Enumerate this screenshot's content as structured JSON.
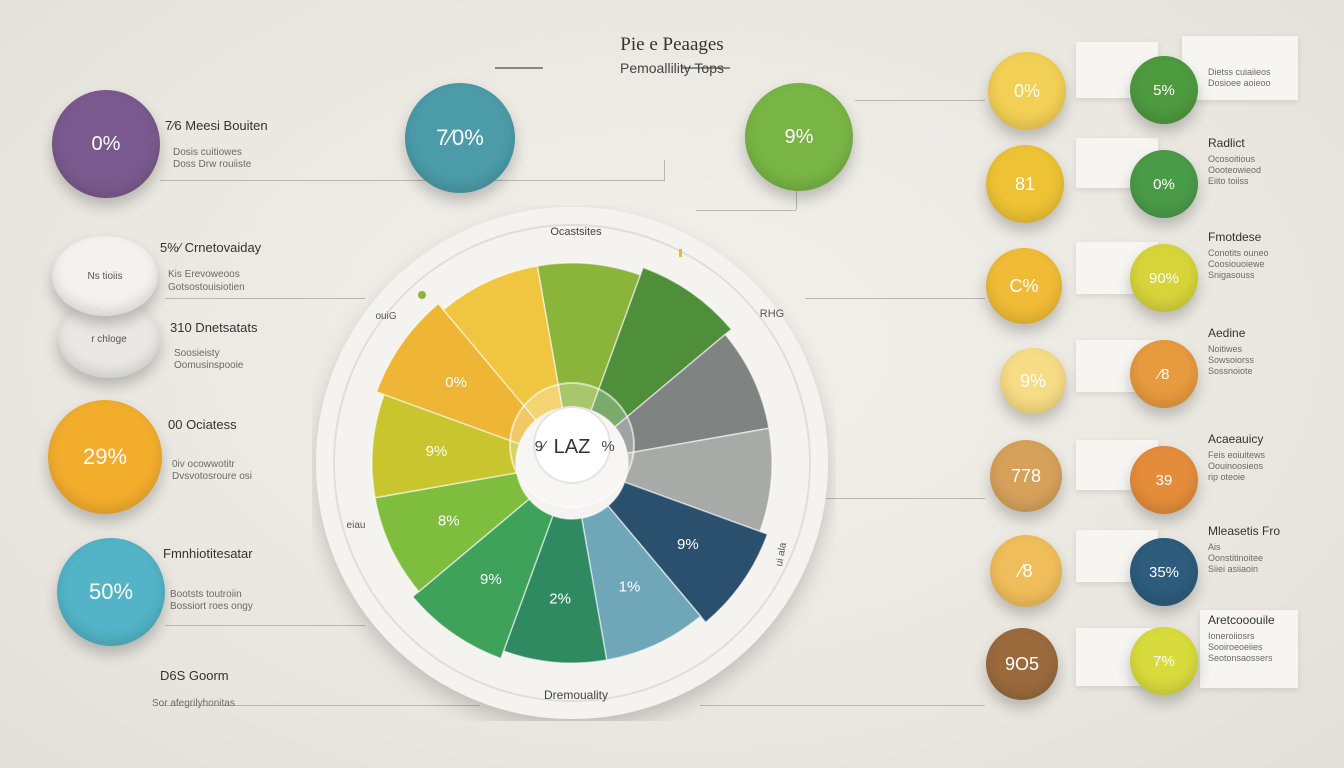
{
  "header": {
    "title": "Pie e Peaages",
    "subtitle": "Pemoallility Tops"
  },
  "chart_data": {
    "type": "pie",
    "center_label": "LAZ",
    "center_left_label": "9⁄",
    "center_right_label": "%",
    "ring_labels": {
      "top": "Ocastsites",
      "bottom": "Dremouality",
      "left_top": "ouiG",
      "left_bottom": "eiau",
      "right_top": "RHG",
      "right_bottom": "ui ala"
    },
    "slices": [
      {
        "label": "",
        "color": "#8bb43a"
      },
      {
        "label": "",
        "color": "#4f8f3a"
      },
      {
        "label": "",
        "color": "#7f8483"
      },
      {
        "label": "",
        "color": "#a8aaa8"
      },
      {
        "label": "9%",
        "color": "#2b506e"
      },
      {
        "label": "1%",
        "color": "#6fa7b9"
      },
      {
        "label": "2%",
        "color": "#2f8a62"
      },
      {
        "label": "9%",
        "color": "#3fa25a"
      },
      {
        "label": "8%",
        "color": "#7fbd3e"
      },
      {
        "label": "9%",
        "color": "#c8c52f"
      },
      {
        "label": "0%",
        "color": "#eeb634"
      },
      {
        "label": "",
        "color": "#f0c640"
      }
    ]
  },
  "top_bubbles": [
    {
      "label": "7⁄0%",
      "color": "#4b9ba9"
    },
    {
      "label": "9%",
      "color": "#78b545"
    }
  ],
  "left_items": [
    {
      "value": "0%",
      "title": "7⁄6 Meesi Bouiten",
      "sub1": "Dosis cuitiowes",
      "sub2": "Doss Drw rouiiste",
      "color": "#7a5a8e"
    },
    {
      "value": "",
      "title": "5%⁄ Crnetovaiday",
      "sub1": "Kis Erevoweoos",
      "sub2": "Gotsostouisiotien",
      "color": "#eeeeec"
    },
    {
      "value": "",
      "title": "310 Dnetsatats",
      "sub1": "Soosieisty",
      "sub2": "Oomusinspooie",
      "color": "#eeeeec"
    },
    {
      "value": "29%",
      "title": "00 Ociatess",
      "sub1": "0iv ocowwotitr",
      "sub2": "Dvsvotosroure osi",
      "color": "#f2ad2d"
    },
    {
      "value": "50%",
      "title": "Fmnhiotitesatar",
      "sub1": "Bootsts toutroiin",
      "sub2": "Bossiort roes ongy",
      "color": "#52b4c6"
    },
    {
      "value": "",
      "title": "D6S Goorm",
      "sub1": "Sor afegrilyhonitas",
      "sub2": "",
      "color": ""
    }
  ],
  "stack_labels": [
    "Ns tioiis",
    "r chloge"
  ],
  "right_outer": [
    {
      "value": "0%",
      "color": "#f2cf55"
    },
    {
      "value": "81",
      "color": "#edc234"
    },
    {
      "value": "C%",
      "color": "#f0bb36"
    },
    {
      "value": "9%",
      "color": "#f6dc84"
    },
    {
      "value": "778",
      "color": "#d6a15a"
    },
    {
      "value": "⁄8",
      "color": "#efbe5a"
    },
    {
      "value": "9O5",
      "color": "#9a6a3d"
    }
  ],
  "right_inner": [
    {
      "value": "5%",
      "color": "#4e9a3f",
      "title": "",
      "sub1": "Dietss cuiaiieos",
      "sub2": "Dosioee aoieoo"
    },
    {
      "value": "0%",
      "color": "#4a9b48",
      "title": "Radlict",
      "sub1": "Ocosoitious",
      "sub2": "Oooteowieod",
      "sub3": "Eiito toiiss"
    },
    {
      "value": "90%",
      "color": "#d7d43a",
      "title": "Fmotdese",
      "sub1": "Conotits ouneo",
      "sub2": "Coosiouoiewe",
      "sub3": "Snigasouss"
    },
    {
      "value": "⁄8",
      "color": "#e79a3e",
      "title": "Aedine",
      "sub1": "Noitiwes",
      "sub2": "Sowsoiorss",
      "sub3": "Sossnoiote"
    },
    {
      "value": "39",
      "color": "#e48c3a",
      "title": "Acaeauicy",
      "sub1": "Feis eoiuitews",
      "sub2": "Oouinoosieos",
      "sub3": "rip oteoie"
    },
    {
      "value": "35%",
      "color": "#2d5c7c",
      "title": "Mleasetis Fro",
      "sub1": "Ais",
      "sub2": "Oonstitinoitee",
      "sub3": "Siiei asiiaoin"
    },
    {
      "value": "7%",
      "color": "#d8db3c",
      "title": "Aretcooouile",
      "sub1": "Ioneroiiosrs",
      "sub2": "Sooiroeoeiies",
      "sub3": "Seotonsaossers"
    }
  ]
}
